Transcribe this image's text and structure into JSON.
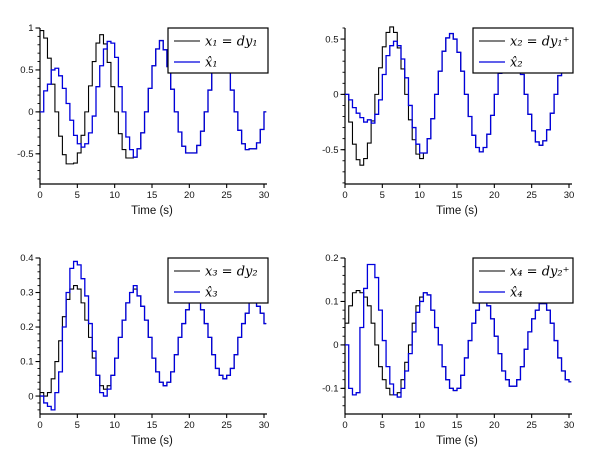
{
  "figure": {
    "background": "#ffffff",
    "accent_blue": "#0000dd",
    "line_black": "#000000"
  },
  "chart_data": [
    {
      "type": "line",
      "style": "step-post",
      "title": "",
      "xlabel": "Time (s)",
      "x_start": 0,
      "x_step": 0.5,
      "xlim": [
        0,
        30
      ],
      "xticks": [
        0,
        5,
        10,
        15,
        20,
        25,
        30
      ],
      "xtick_labels": [
        "0",
        "5",
        "10",
        "15",
        "20",
        "25",
        "30"
      ],
      "ytick_vals": [
        1,
        0.5,
        0,
        -0.5
      ],
      "ytick_labels": [
        "1",
        "0.5",
        "0",
        "-0.5"
      ],
      "ytick_minor_step": 0.1,
      "y_axis_top": 1.0,
      "y_axis_bottom": -0.86,
      "grid": false,
      "legend_position": "top-right",
      "series": [
        {
          "name": "x₁ = dy₁",
          "color": "#000000",
          "values": [
            0.97,
            0.88,
            0.64,
            0.33,
            0,
            -0.29,
            -0.51,
            -0.62,
            -0.62,
            -0.61,
            -0.49,
            -0.28,
            0,
            0.31,
            0.6,
            0.82,
            0.92,
            0.81,
            0.59,
            0.3,
            0,
            -0.26,
            -0.45,
            -0.55,
            -0.55,
            -0.54,
            -0.44,
            -0.25,
            0,
            0.28,
            0.55,
            0.75,
            0.85,
            0.74,
            0.54,
            0.27,
            0,
            -0.24,
            -0.41,
            -0.49,
            -0.49,
            -0.49,
            -0.4,
            -0.23,
            0,
            0.26,
            0.51,
            0.7,
            0.8,
            0.7,
            0.5,
            0.26,
            0,
            -0.22,
            -0.38,
            -0.45,
            -0.44,
            -0.44,
            -0.37,
            -0.21,
            0
          ]
        },
        {
          "name": "x̂₁",
          "color": "#0000dd",
          "values": [
            0,
            0.25,
            0.33,
            0.5,
            0.52,
            0.43,
            0.28,
            0.1,
            -0.1,
            -0.28,
            -0.38,
            -0.42,
            -0.38,
            -0.25,
            -0.05,
            0.3,
            0.55,
            0.75,
            0.84,
            0.82,
            0.65,
            0.3,
            0,
            -0.3,
            -0.45,
            -0.54,
            -0.44,
            -0.25,
            0,
            0.28,
            0.55,
            0.75,
            0.85,
            0.74,
            0.54,
            0.27,
            0,
            -0.24,
            -0.41,
            -0.49,
            -0.49,
            -0.49,
            -0.4,
            -0.23,
            0,
            0.26,
            0.51,
            0.7,
            0.8,
            0.7,
            0.5,
            0.26,
            0,
            -0.22,
            -0.38,
            -0.45,
            -0.44,
            -0.44,
            -0.37,
            -0.21,
            0
          ]
        }
      ]
    },
    {
      "type": "line",
      "style": "step-post",
      "title": "",
      "xlabel": "Time (s)",
      "x_start": 0,
      "x_step": 0.5,
      "xlim": [
        0,
        30
      ],
      "xticks": [
        0,
        5,
        10,
        15,
        20,
        25,
        30
      ],
      "xtick_labels": [
        "0",
        "5",
        "10",
        "15",
        "20",
        "25",
        "30"
      ],
      "ytick_vals": [
        0.5,
        0,
        -0.5
      ],
      "ytick_labels": [
        "0.5",
        "0",
        "-0.5"
      ],
      "ytick_minor_step": 0.1,
      "y_axis_top": 0.6,
      "y_axis_bottom": -0.81,
      "grid": false,
      "legend_position": "top-right",
      "series": [
        {
          "name": "x₂ = dy₁⁺",
          "color": "#000000",
          "values": [
            0,
            -0.25,
            -0.45,
            -0.59,
            -0.64,
            -0.58,
            -0.44,
            -0.24,
            0,
            0.24,
            0.43,
            0.56,
            0.61,
            0.56,
            0.42,
            0.23,
            0,
            -0.23,
            -0.41,
            -0.54,
            -0.58,
            -0.53,
            -0.4,
            -0.22,
            0,
            0.21,
            0.39,
            0.51,
            0.55,
            0.5,
            0.38,
            0.21,
            0,
            -0.2,
            -0.37,
            -0.48,
            -0.52,
            -0.48,
            -0.36,
            -0.19,
            0,
            0.19,
            0.35,
            0.46,
            0.49,
            0.45,
            0.34,
            0.18,
            0,
            -0.18,
            -0.33,
            -0.43,
            -0.46,
            -0.42,
            -0.32,
            -0.17,
            0,
            0.17,
            0.31,
            0.4,
            0.43
          ]
        },
        {
          "name": "x̂₂",
          "color": "#0000dd",
          "values": [
            0,
            -0.05,
            -0.12,
            -0.17,
            -0.21,
            -0.25,
            -0.23,
            -0.26,
            -0.18,
            -0.05,
            0.18,
            0.35,
            0.44,
            0.48,
            0.44,
            0.32,
            0.15,
            -0.1,
            -0.3,
            -0.45,
            -0.53,
            -0.53,
            -0.4,
            -0.22,
            0,
            0.21,
            0.39,
            0.51,
            0.55,
            0.5,
            0.38,
            0.21,
            0,
            -0.2,
            -0.37,
            -0.48,
            -0.52,
            -0.48,
            -0.36,
            -0.19,
            0,
            0.19,
            0.35,
            0.46,
            0.49,
            0.45,
            0.34,
            0.18,
            0,
            -0.18,
            -0.33,
            -0.43,
            -0.46,
            -0.42,
            -0.32,
            -0.17,
            0,
            0.17,
            0.31,
            0.4,
            0.43
          ]
        }
      ]
    },
    {
      "type": "line",
      "style": "step-post",
      "title": "",
      "xlabel": "Time (s)",
      "x_start": 0,
      "x_step": 0.5,
      "xlim": [
        0,
        30
      ],
      "xticks": [
        0,
        5,
        10,
        15,
        20,
        25,
        30
      ],
      "xtick_labels": [
        "0",
        "5",
        "10",
        "15",
        "20",
        "25",
        "30"
      ],
      "ytick_vals": [
        0.4,
        0.3,
        0.2,
        0.1,
        0
      ],
      "ytick_labels": [
        "0.4",
        "0.3",
        "0.2",
        "0.1",
        "0"
      ],
      "ytick_minor_step": 0.02,
      "y_axis_top": 0.4,
      "y_axis_bottom": -0.052,
      "grid": false,
      "legend_position": "top-right",
      "series": [
        {
          "name": "x₃ = dy₂",
          "color": "#000000",
          "values": [
            0.01,
            0,
            0.01,
            0.05,
            0.1,
            0.16,
            0.23,
            0.28,
            0.31,
            0.32,
            0.31,
            0.27,
            0.22,
            0.17,
            0.11,
            0.06,
            0.03,
            0.02,
            0.03,
            0.06,
            0.11,
            0.17,
            0.22,
            0.27,
            0.3,
            0.31,
            0.29,
            0.26,
            0.22,
            0.17,
            0.11,
            0.07,
            0.04,
            0.03,
            0.04,
            0.07,
            0.12,
            0.17,
            0.21,
            0.25,
            0.28,
            0.29,
            0.28,
            0.25,
            0.21,
            0.17,
            0.12,
            0.08,
            0.06,
            0.05,
            0.06,
            0.08,
            0.12,
            0.17,
            0.21,
            0.24,
            0.27,
            0.27,
            0.26,
            0.24,
            0.21
          ]
        },
        {
          "name": "x̂₃",
          "color": "#0000dd",
          "values": [
            0,
            -0.02,
            -0.03,
            -0.04,
            0.01,
            0.07,
            0.2,
            0.3,
            0.37,
            0.39,
            0.38,
            0.34,
            0.29,
            0.21,
            0.13,
            0.06,
            0.01,
            0,
            0.02,
            0.06,
            0.11,
            0.17,
            0.22,
            0.27,
            0.3,
            0.32,
            0.29,
            0.26,
            0.22,
            0.17,
            0.11,
            0.07,
            0.04,
            0.03,
            0.04,
            0.07,
            0.12,
            0.17,
            0.21,
            0.25,
            0.28,
            0.29,
            0.28,
            0.25,
            0.21,
            0.17,
            0.12,
            0.08,
            0.06,
            0.05,
            0.06,
            0.08,
            0.12,
            0.17,
            0.21,
            0.24,
            0.27,
            0.27,
            0.26,
            0.24,
            0.21
          ]
        }
      ]
    },
    {
      "type": "line",
      "style": "step-post",
      "title": "",
      "xlabel": "Time (s)",
      "x_start": 0,
      "x_step": 0.5,
      "xlim": [
        0,
        30
      ],
      "xticks": [
        0,
        5,
        10,
        15,
        20,
        25,
        30
      ],
      "xtick_labels": [
        "0",
        "5",
        "10",
        "15",
        "20",
        "25",
        "30"
      ],
      "ytick_vals": [
        0.2,
        0.1,
        0,
        -0.1
      ],
      "ytick_labels": [
        "0.2",
        "0.1",
        "0",
        "-0.1"
      ],
      "ytick_minor_step": 0.02,
      "y_axis_top": 0.2,
      "y_axis_bottom": -0.159,
      "grid": false,
      "legend_position": "top-right",
      "series": [
        {
          "name": "x₄ = dy₂⁺",
          "color": "#000000",
          "values": [
            0.05,
            0.09,
            0.12,
            0.125,
            0.12,
            0.11,
            0.09,
            0.05,
            0,
            -0.05,
            -0.08,
            -0.1,
            -0.115,
            -0.115,
            -0.11,
            -0.08,
            -0.04,
            0,
            0.05,
            0.09,
            0.11,
            0.12,
            0.115,
            0.08,
            0.04,
            0,
            -0.05,
            -0.08,
            -0.1,
            -0.105,
            -0.1,
            -0.07,
            -0.03,
            0.01,
            0.05,
            0.08,
            0.1,
            0.105,
            0.09,
            0.06,
            0.02,
            -0.02,
            -0.06,
            -0.08,
            -0.095,
            -0.095,
            -0.08,
            -0.05,
            -0.01,
            0.03,
            0.06,
            0.08,
            0.095,
            0.095,
            0.08,
            0.05,
            0.01,
            -0.03,
            -0.06,
            -0.08,
            -0.085
          ]
        },
        {
          "name": "x̂₄",
          "color": "#0000dd",
          "values": [
            0,
            -0.1,
            -0.115,
            -0.11,
            0.04,
            0.13,
            0.185,
            0.185,
            0.155,
            0.08,
            0.01,
            -0.05,
            -0.09,
            -0.115,
            -0.12,
            -0.1,
            -0.06,
            -0.02,
            0.03,
            0.075,
            0.1,
            0.12,
            0.115,
            0.08,
            0.04,
            0,
            -0.05,
            -0.08,
            -0.1,
            -0.105,
            -0.1,
            -0.07,
            -0.03,
            0.01,
            0.05,
            0.08,
            0.1,
            0.105,
            0.09,
            0.06,
            0.02,
            -0.02,
            -0.06,
            -0.08,
            -0.095,
            -0.095,
            -0.08,
            -0.05,
            -0.01,
            0.03,
            0.06,
            0.08,
            0.095,
            0.095,
            0.08,
            0.05,
            0.01,
            -0.03,
            -0.06,
            -0.08,
            -0.085
          ]
        }
      ]
    }
  ]
}
